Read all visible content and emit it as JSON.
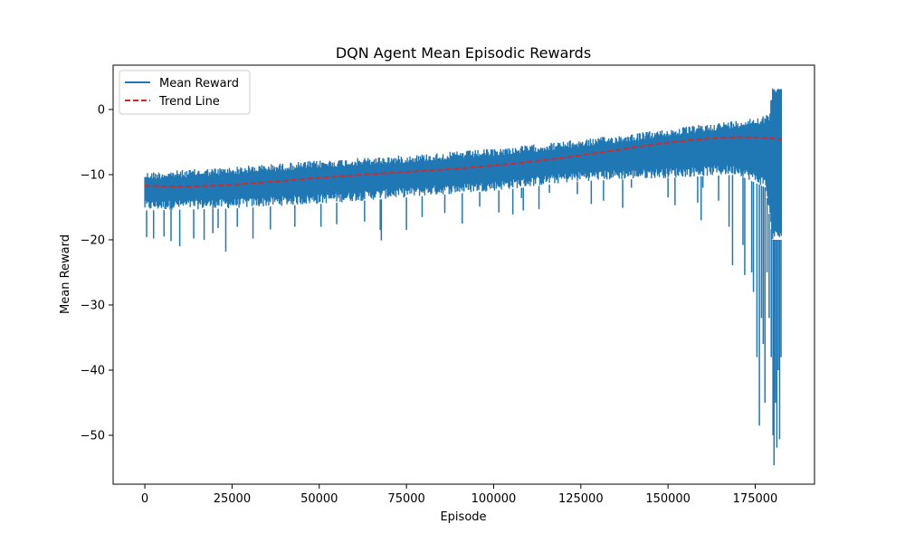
{
  "chart_data": {
    "type": "line",
    "title": "DQN Agent Mean Episodic Rewards",
    "xlabel": "Episode",
    "ylabel": "Mean Reward",
    "xlim": [
      -9100,
      192000
    ],
    "ylim": [
      -57.5,
      6.8
    ],
    "xticks": [
      0,
      25000,
      50000,
      75000,
      100000,
      125000,
      150000,
      175000
    ],
    "xtick_labels": [
      "0",
      "25000",
      "50000",
      "75000",
      "100000",
      "125000",
      "150000",
      "175000"
    ],
    "yticks": [
      0,
      -10,
      -20,
      -30,
      -40,
      -50
    ],
    "ytick_labels": [
      "0",
      "−10",
      "−20",
      "−30",
      "−40",
      "−50"
    ],
    "grid": false,
    "legend": {
      "position": "top-left",
      "entries": [
        "Mean Reward",
        "Trend Line"
      ]
    },
    "series": [
      {
        "name": "Mean Reward",
        "color": "#1f77b4",
        "style": "solid",
        "episodes": 182500,
        "band_upper": [
          [
            0,
            -9.6
          ],
          [
            10000,
            -9.3
          ],
          [
            25000,
            -8.8
          ],
          [
            50000,
            -7.8
          ],
          [
            75000,
            -7.0
          ],
          [
            100000,
            -6.0
          ],
          [
            125000,
            -4.6
          ],
          [
            150000,
            -3.0
          ],
          [
            170000,
            -1.6
          ],
          [
            179000,
            -0.8
          ],
          [
            180000,
            3.8
          ],
          [
            182500,
            3.8
          ]
        ],
        "band_lower": [
          [
            0,
            -15.5
          ],
          [
            25000,
            -15.2
          ],
          [
            50000,
            -14.5
          ],
          [
            75000,
            -13.5
          ],
          [
            100000,
            -12.5
          ],
          [
            125000,
            -11.0
          ],
          [
            150000,
            -10.5
          ],
          [
            170000,
            -10.0
          ],
          [
            178000,
            -12.0
          ],
          [
            180000,
            -20.0
          ],
          [
            182500,
            -20.0
          ]
        ],
        "notable_dips": [
          [
            500,
            -19.6
          ],
          [
            2500,
            -19.8
          ],
          [
            5500,
            -19.5
          ],
          [
            7500,
            -20.2
          ],
          [
            10000,
            -21.0
          ],
          [
            14000,
            -19.8
          ],
          [
            17000,
            -20.0
          ],
          [
            19500,
            -19.0
          ],
          [
            21000,
            -18.2
          ],
          [
            23200,
            -21.8
          ],
          [
            26500,
            -18.0
          ],
          [
            31000,
            -19.8
          ],
          [
            36000,
            -18.4
          ],
          [
            43000,
            -18.0
          ],
          [
            50500,
            -18.0
          ],
          [
            55000,
            -17.6
          ],
          [
            63000,
            -17.2
          ],
          [
            67500,
            -18.5
          ],
          [
            67800,
            -20.1
          ],
          [
            75000,
            -18.5
          ],
          [
            79500,
            -16.5
          ],
          [
            86000,
            -15.9
          ],
          [
            91000,
            -17.5
          ],
          [
            96000,
            -14.9
          ],
          [
            101500,
            -15.8
          ],
          [
            105500,
            -16.1
          ],
          [
            108000,
            -13.6
          ],
          [
            108500,
            -15.5
          ],
          [
            113000,
            -15.3
          ],
          [
            116000,
            -12.8
          ],
          [
            124000,
            -13.0
          ],
          [
            128000,
            -14.5
          ],
          [
            131500,
            -14.0
          ],
          [
            137000,
            -15.1
          ],
          [
            139500,
            -12.0
          ],
          [
            150000,
            -13.5
          ],
          [
            152000,
            -14.7
          ],
          [
            158500,
            -14.3
          ],
          [
            159500,
            -17.0
          ],
          [
            160000,
            -12.0
          ],
          [
            164500,
            -14.0
          ],
          [
            167500,
            -18.0
          ],
          [
            168500,
            -23.9
          ],
          [
            171500,
            -20.8
          ],
          [
            172000,
            -25.4
          ],
          [
            174000,
            -25.0
          ],
          [
            174500,
            -28.0
          ],
          [
            175500,
            -38.0
          ],
          [
            176200,
            -48.5
          ],
          [
            176800,
            -32.0
          ],
          [
            177300,
            -36.0
          ],
          [
            177800,
            -45.0
          ],
          [
            178400,
            -25.0
          ],
          [
            179000,
            -32.0
          ],
          [
            179600,
            -38.0
          ],
          [
            180100,
            -50.0
          ],
          [
            180400,
            -54.6
          ],
          [
            180800,
            -45.0
          ],
          [
            181200,
            -51.9
          ],
          [
            181600,
            -40.0
          ],
          [
            182000,
            -50.6
          ],
          [
            182400,
            -38.0
          ]
        ]
      },
      {
        "name": "Trend Line",
        "color": "#d62728",
        "style": "dashed",
        "points": [
          [
            0,
            -11.7
          ],
          [
            5000,
            -11.8
          ],
          [
            10000,
            -11.85
          ],
          [
            15000,
            -11.8
          ],
          [
            20000,
            -11.7
          ],
          [
            25000,
            -11.55
          ],
          [
            30000,
            -11.35
          ],
          [
            35000,
            -11.15
          ],
          [
            40000,
            -10.95
          ],
          [
            45000,
            -10.7
          ],
          [
            50000,
            -10.5
          ],
          [
            55000,
            -10.3
          ],
          [
            60000,
            -10.1
          ],
          [
            65000,
            -9.9
          ],
          [
            70000,
            -9.75
          ],
          [
            75000,
            -9.6
          ],
          [
            80000,
            -9.4
          ],
          [
            85000,
            -9.25
          ],
          [
            90000,
            -9.05
          ],
          [
            95000,
            -8.85
          ],
          [
            100000,
            -8.6
          ],
          [
            105000,
            -8.35
          ],
          [
            110000,
            -8.05
          ],
          [
            115000,
            -7.75
          ],
          [
            120000,
            -7.4
          ],
          [
            125000,
            -7.05
          ],
          [
            130000,
            -6.65
          ],
          [
            135000,
            -6.25
          ],
          [
            140000,
            -5.85
          ],
          [
            145000,
            -5.45
          ],
          [
            150000,
            -5.1
          ],
          [
            155000,
            -4.8
          ],
          [
            160000,
            -4.55
          ],
          [
            165000,
            -4.35
          ],
          [
            170000,
            -4.25
          ],
          [
            175000,
            -4.3
          ],
          [
            180000,
            -4.45
          ],
          [
            182500,
            -4.6
          ]
        ]
      }
    ]
  }
}
